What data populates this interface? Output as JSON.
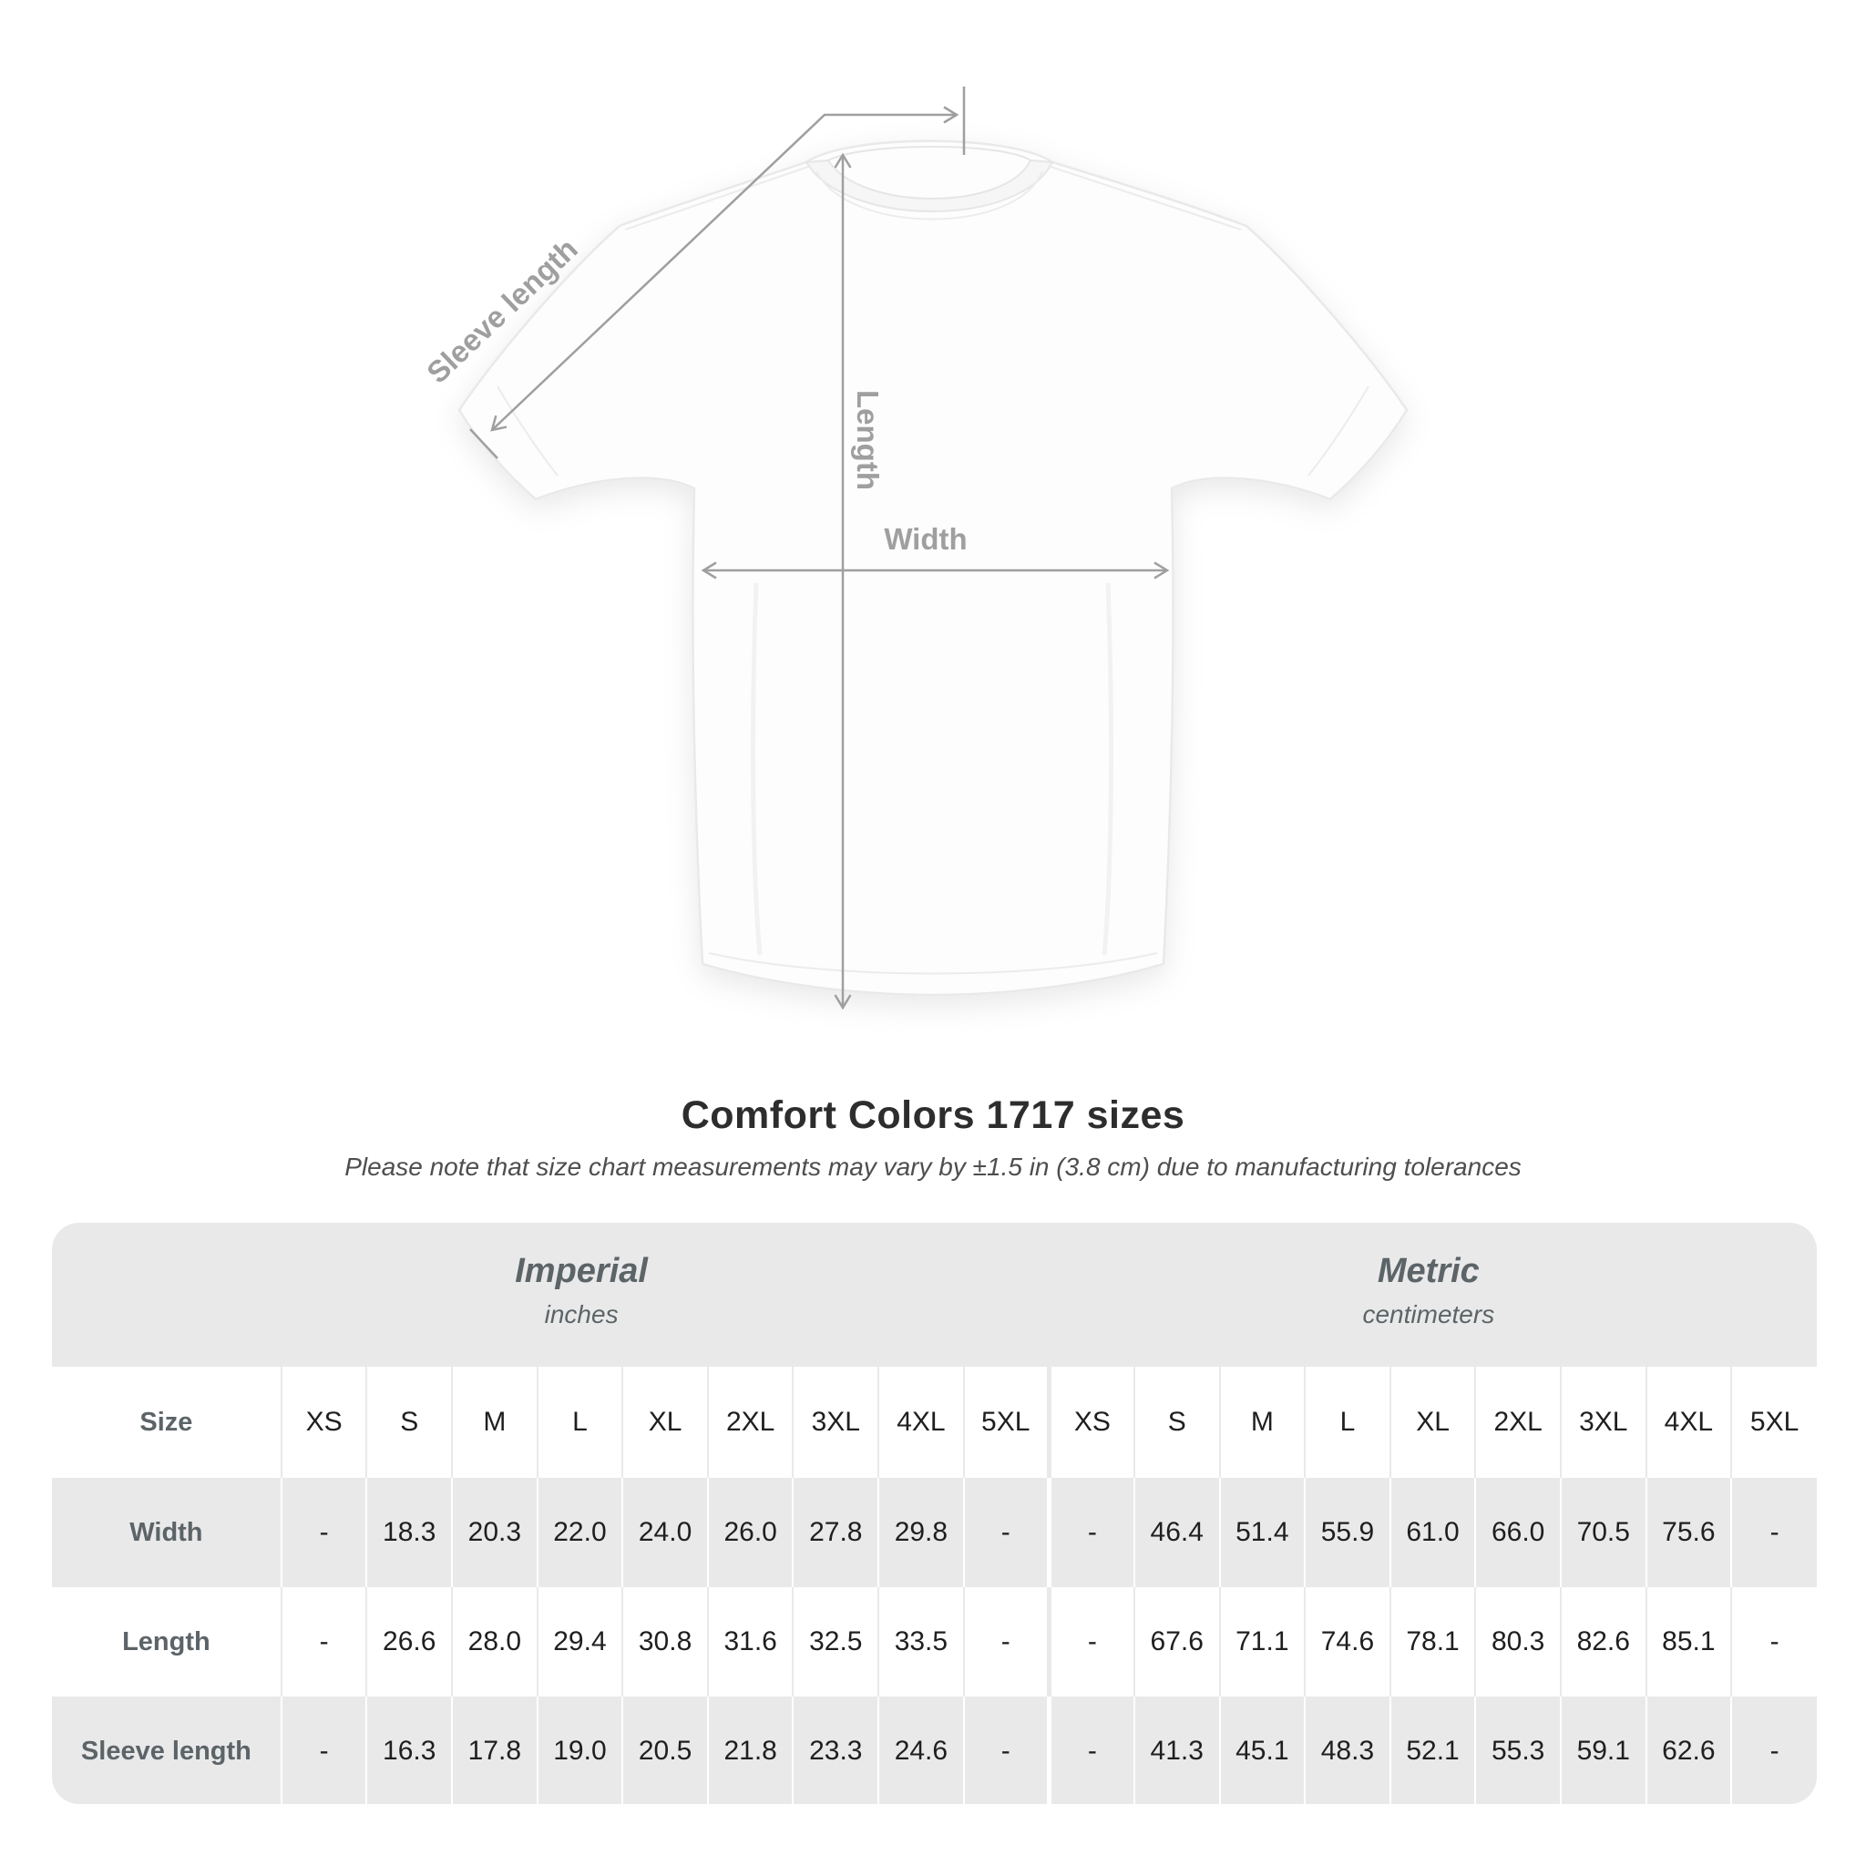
{
  "diagram": {
    "sleeve_label": "Sleeve length",
    "length_label": "Length",
    "width_label": "Width",
    "line_color": "#9f9f9f"
  },
  "heading": {
    "title": "Comfort Colors 1717 sizes",
    "subtitle": "Please note that size chart measurements may vary by ±1.5 in (3.8 cm) due to manufacturing tolerances"
  },
  "table": {
    "size_header": "Size",
    "groups": [
      {
        "label": "Imperial",
        "unit": "inches"
      },
      {
        "label": "Metric",
        "unit": "centimeters"
      }
    ],
    "sizes": [
      "XS",
      "S",
      "M",
      "L",
      "XL",
      "2XL",
      "3XL",
      "4XL",
      "5XL"
    ],
    "rows": [
      {
        "label": "Width",
        "imperial": [
          "-",
          "18.3",
          "20.3",
          "22.0",
          "24.0",
          "26.0",
          "27.8",
          "29.8",
          "-"
        ],
        "metric": [
          "-",
          "46.4",
          "51.4",
          "55.9",
          "61.0",
          "66.0",
          "70.5",
          "75.6",
          "-"
        ]
      },
      {
        "label": "Length",
        "imperial": [
          "-",
          "26.6",
          "28.0",
          "29.4",
          "30.8",
          "31.6",
          "32.5",
          "33.5",
          "-"
        ],
        "metric": [
          "-",
          "67.6",
          "71.1",
          "74.6",
          "78.1",
          "80.3",
          "82.6",
          "85.1",
          "-"
        ]
      },
      {
        "label": "Sleeve length",
        "imperial": [
          "-",
          "16.3",
          "17.8",
          "19.0",
          "20.5",
          "21.8",
          "23.3",
          "24.6",
          "-"
        ],
        "metric": [
          "-",
          "41.3",
          "45.1",
          "48.3",
          "52.1",
          "55.3",
          "59.1",
          "62.6",
          "-"
        ]
      }
    ],
    "colors": {
      "container_bg": "#e9e9e9",
      "white_row_bg": "#ffffff",
      "header_text": "#5c6468",
      "value_text": "#1f1f1f"
    }
  },
  "chart_data": {
    "type": "table",
    "title": "Comfort Colors 1717 sizes",
    "subtitle": "Please note that size chart measurements may vary by ±1.5 in (3.8 cm) due to manufacturing tolerances",
    "column_groups": [
      {
        "label": "Imperial",
        "unit": "inches",
        "columns": [
          "XS",
          "S",
          "M",
          "L",
          "XL",
          "2XL",
          "3XL",
          "4XL",
          "5XL"
        ]
      },
      {
        "label": "Metric",
        "unit": "centimeters",
        "columns": [
          "XS",
          "S",
          "M",
          "L",
          "XL",
          "2XL",
          "3XL",
          "4XL",
          "5XL"
        ]
      }
    ],
    "rows": [
      {
        "measurement": "Width",
        "imperial": [
          null,
          18.3,
          20.3,
          22.0,
          24.0,
          26.0,
          27.8,
          29.8,
          null
        ],
        "metric": [
          null,
          46.4,
          51.4,
          55.9,
          61.0,
          66.0,
          70.5,
          75.6,
          null
        ]
      },
      {
        "measurement": "Length",
        "imperial": [
          null,
          26.6,
          28.0,
          29.4,
          30.8,
          31.6,
          32.5,
          33.5,
          null
        ],
        "metric": [
          null,
          67.6,
          71.1,
          74.6,
          78.1,
          80.3,
          82.6,
          85.1,
          null
        ]
      },
      {
        "measurement": "Sleeve length",
        "imperial": [
          null,
          16.3,
          17.8,
          19.0,
          20.5,
          21.8,
          23.3,
          24.6,
          null
        ],
        "metric": [
          null,
          41.3,
          45.1,
          48.3,
          52.1,
          55.3,
          59.1,
          62.6,
          null
        ]
      }
    ],
    "diagram_annotations": [
      "Sleeve length",
      "Length",
      "Width"
    ]
  }
}
